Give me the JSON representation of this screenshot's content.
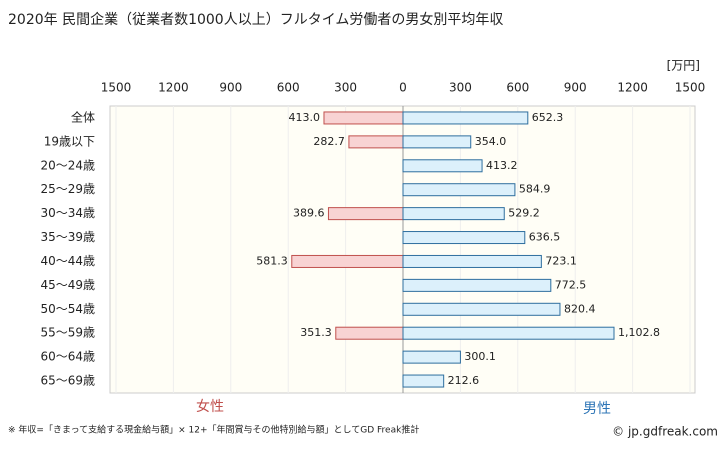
{
  "chart_data": {
    "type": "butterfly-bar",
    "title": "2020年 民間企業（従業者数1000人以上）フルタイム労働者の男女別平均年収",
    "unit_label": "[万円]",
    "categories": [
      "全体",
      "19歳以下",
      "20〜24歳",
      "25〜29歳",
      "30〜34歳",
      "35〜39歳",
      "40〜44歳",
      "45〜49歳",
      "50〜54歳",
      "55〜59歳",
      "60〜64歳",
      "65〜69歳"
    ],
    "series": [
      {
        "name": "女性",
        "color": "#f8d3d3",
        "edge": "#c0504d",
        "text_color": "#c0504d",
        "values": [
          413.0,
          282.7,
          null,
          null,
          389.6,
          null,
          581.3,
          null,
          null,
          351.3,
          null,
          null
        ],
        "value_labels": [
          "413.0",
          "282.7",
          null,
          null,
          "389.6",
          null,
          "581.3",
          null,
          null,
          "351.3",
          null,
          null
        ]
      },
      {
        "name": "男性",
        "color": "#dcf0fb",
        "edge": "#2e6e9e",
        "text_color": "#2e75b6",
        "values": [
          652.3,
          354.0,
          413.2,
          584.9,
          529.2,
          636.5,
          723.1,
          772.5,
          820.4,
          1102.8,
          300.1,
          212.6
        ],
        "value_labels": [
          "652.3",
          "354.0",
          "413.2",
          "584.9",
          "529.2",
          "636.5",
          "723.1",
          "772.5",
          "820.4",
          "1,102.8",
          "300.1",
          "212.6"
        ]
      }
    ],
    "xlim": [
      0,
      1500
    ],
    "xticks": [
      0,
      300,
      600,
      900,
      1200,
      1500
    ],
    "grid": true,
    "footnote": "※ 年収=「きまって支給する現金給与額」× 12+「年間賞与その他特別給与額」としてGD Freak推計",
    "watermark": "© jp.gdfreak.com"
  }
}
